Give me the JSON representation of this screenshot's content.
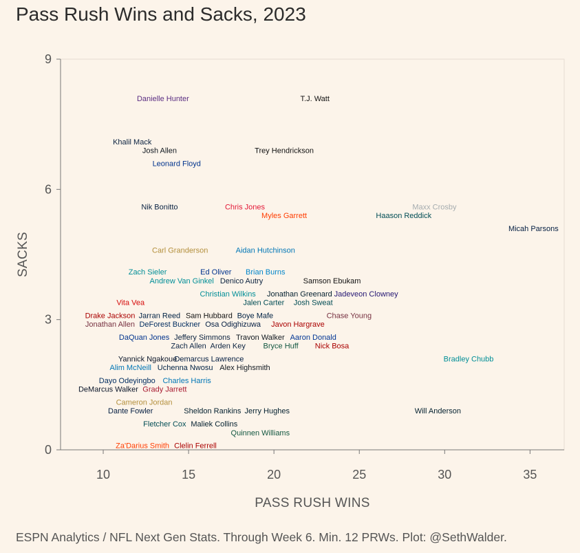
{
  "chart_data": {
    "type": "scatter",
    "title": "Pass Rush Wins and Sacks, 2023",
    "xlabel": "PASS RUSH WINS",
    "ylabel": "SACKS",
    "xlim": [
      7.5,
      37
    ],
    "ylim": [
      0,
      9
    ],
    "xticks": [
      10,
      15,
      20,
      25,
      30,
      35
    ],
    "yticks": [
      0,
      3,
      6,
      9
    ],
    "caption": "ESPN Analytics / NFL Next Gen Stats. Through Week 6. Min. 12 PRWs. Plot: @SethWalder.",
    "points": [
      {
        "name": "Danielle Hunter",
        "x": 13.5,
        "y": 8.1,
        "color": "#5a2d82"
      },
      {
        "name": "T.J. Watt",
        "x": 22.4,
        "y": 8.1,
        "color": "#111111"
      },
      {
        "name": "Khalil Mack",
        "x": 11.7,
        "y": 7.1,
        "color": "#0a2240"
      },
      {
        "name": "Josh Allen",
        "x": 13.3,
        "y": 6.9,
        "color": "#101820"
      },
      {
        "name": "Trey Hendrickson",
        "x": 20.6,
        "y": 6.9,
        "color": "#111111"
      },
      {
        "name": "Leonard Floyd",
        "x": 14.3,
        "y": 6.6,
        "color": "#00338d"
      },
      {
        "name": "Nik Bonitto",
        "x": 13.3,
        "y": 5.6,
        "color": "#0a2343"
      },
      {
        "name": "Chris Jones",
        "x": 18.3,
        "y": 5.6,
        "color": "#e31837"
      },
      {
        "name": "Maxx Crosby",
        "x": 29.4,
        "y": 5.6,
        "color": "#a5acaf"
      },
      {
        "name": "Myles Garrett",
        "x": 20.6,
        "y": 5.4,
        "color": "#ff3c00"
      },
      {
        "name": "Haason Reddick",
        "x": 27.6,
        "y": 5.4,
        "color": "#004c54"
      },
      {
        "name": "Micah Parsons",
        "x": 35.2,
        "y": 5.1,
        "color": "#041e42"
      },
      {
        "name": "Carl Granderson",
        "x": 14.5,
        "y": 4.6,
        "color": "#b38f3c"
      },
      {
        "name": "Aidan Hutchinson",
        "x": 19.5,
        "y": 4.6,
        "color": "#0076b6"
      },
      {
        "name": "Zach Sieler",
        "x": 12.6,
        "y": 4.1,
        "color": "#008e97"
      },
      {
        "name": "Ed Oliver",
        "x": 16.6,
        "y": 4.1,
        "color": "#00338d"
      },
      {
        "name": "Brian Burns",
        "x": 19.5,
        "y": 4.1,
        "color": "#0085ca"
      },
      {
        "name": "Andrew Van Ginkel",
        "x": 14.6,
        "y": 3.9,
        "color": "#008e97"
      },
      {
        "name": "Denico Autry",
        "x": 18.1,
        "y": 3.9,
        "color": "#0c2340"
      },
      {
        "name": "Samson Ebukam",
        "x": 23.4,
        "y": 3.9,
        "color": "#111111"
      },
      {
        "name": "Christian Wilkins",
        "x": 17.3,
        "y": 3.6,
        "color": "#008e97"
      },
      {
        "name": "Jonathan Greenard",
        "x": 21.5,
        "y": 3.6,
        "color": "#03202f"
      },
      {
        "name": "Jadeveon Clowney",
        "x": 25.4,
        "y": 3.6,
        "color": "#241773"
      },
      {
        "name": "Vita Vea",
        "x": 11.6,
        "y": 3.4,
        "color": "#d50a0a"
      },
      {
        "name": "Jalen Carter",
        "x": 19.4,
        "y": 3.4,
        "color": "#004c54"
      },
      {
        "name": "Josh Sweat",
        "x": 22.3,
        "y": 3.4,
        "color": "#004c54"
      },
      {
        "name": "Drake Jackson",
        "x": 10.4,
        "y": 3.1,
        "color": "#aa0000"
      },
      {
        "name": "Jarran Reed",
        "x": 13.3,
        "y": 3.1,
        "color": "#002244"
      },
      {
        "name": "Sam Hubbard",
        "x": 16.2,
        "y": 3.1,
        "color": "#111111"
      },
      {
        "name": "Boye Mafe",
        "x": 18.9,
        "y": 3.1,
        "color": "#002244"
      },
      {
        "name": "Chase Young",
        "x": 24.4,
        "y": 3.1,
        "color": "#773141"
      },
      {
        "name": "Jonathan Allen",
        "x": 10.4,
        "y": 2.9,
        "color": "#773141"
      },
      {
        "name": "DeForest Buckner",
        "x": 13.9,
        "y": 2.9,
        "color": "#002c5f"
      },
      {
        "name": "Osa Odighizuwa",
        "x": 17.6,
        "y": 2.9,
        "color": "#041e42"
      },
      {
        "name": "Javon Hargrave",
        "x": 21.4,
        "y": 2.9,
        "color": "#aa0000"
      },
      {
        "name": "DaQuan Jones",
        "x": 12.4,
        "y": 2.6,
        "color": "#00338d"
      },
      {
        "name": "Jeffery Simmons",
        "x": 15.8,
        "y": 2.6,
        "color": "#0c2340"
      },
      {
        "name": "Travon Walker",
        "x": 19.2,
        "y": 2.6,
        "color": "#101820"
      },
      {
        "name": "Aaron Donald",
        "x": 22.3,
        "y": 2.6,
        "color": "#003594"
      },
      {
        "name": "Zach Allen",
        "x": 15.0,
        "y": 2.4,
        "color": "#0a2343"
      },
      {
        "name": "Arden Key",
        "x": 17.3,
        "y": 2.4,
        "color": "#0c2340"
      },
      {
        "name": "Bryce Huff",
        "x": 20.4,
        "y": 2.4,
        "color": "#125740"
      },
      {
        "name": "Nick Bosa",
        "x": 23.4,
        "y": 2.4,
        "color": "#aa0000"
      },
      {
        "name": "Yannick Ngakoue",
        "x": 12.6,
        "y": 2.1,
        "color": "#0b162a"
      },
      {
        "name": "Demarcus Lawrence",
        "x": 16.2,
        "y": 2.1,
        "color": "#041e42"
      },
      {
        "name": "Bradley Chubb",
        "x": 31.4,
        "y": 2.1,
        "color": "#008e97"
      },
      {
        "name": "Alim McNeill",
        "x": 11.6,
        "y": 1.9,
        "color": "#0076b6"
      },
      {
        "name": "Uchenna Nwosu",
        "x": 14.8,
        "y": 1.9,
        "color": "#002244"
      },
      {
        "name": "Alex Highsmith",
        "x": 18.3,
        "y": 1.9,
        "color": "#101820"
      },
      {
        "name": "Dayo Odeyingbo",
        "x": 11.4,
        "y": 1.6,
        "color": "#002c5f"
      },
      {
        "name": "Charles Harris",
        "x": 14.9,
        "y": 1.6,
        "color": "#0076b6"
      },
      {
        "name": "DeMarcus Walker",
        "x": 10.3,
        "y": 1.4,
        "color": "#0b162a"
      },
      {
        "name": "Grady Jarrett",
        "x": 13.6,
        "y": 1.4,
        "color": "#a71930"
      },
      {
        "name": "Cameron Jordan",
        "x": 12.4,
        "y": 1.1,
        "color": "#b38f3c"
      },
      {
        "name": "Dante Fowler",
        "x": 11.6,
        "y": 0.9,
        "color": "#041e42"
      },
      {
        "name": "Sheldon Rankins",
        "x": 16.4,
        "y": 0.9,
        "color": "#03202f"
      },
      {
        "name": "Jerry Hughes",
        "x": 19.6,
        "y": 0.9,
        "color": "#03202f"
      },
      {
        "name": "Will Anderson",
        "x": 29.6,
        "y": 0.9,
        "color": "#03202f"
      },
      {
        "name": "Fletcher Cox",
        "x": 13.6,
        "y": 0.6,
        "color": "#004c54"
      },
      {
        "name": "Maliek Collins",
        "x": 16.5,
        "y": 0.6,
        "color": "#03202f"
      },
      {
        "name": "Quinnen Williams",
        "x": 19.2,
        "y": 0.4,
        "color": "#125740"
      },
      {
        "name": "Za'Darius Smith",
        "x": 12.3,
        "y": 0.1,
        "color": "#ff3c00"
      },
      {
        "name": "Clelin Ferrell",
        "x": 15.4,
        "y": 0.1,
        "color": "#aa0000"
      }
    ]
  }
}
